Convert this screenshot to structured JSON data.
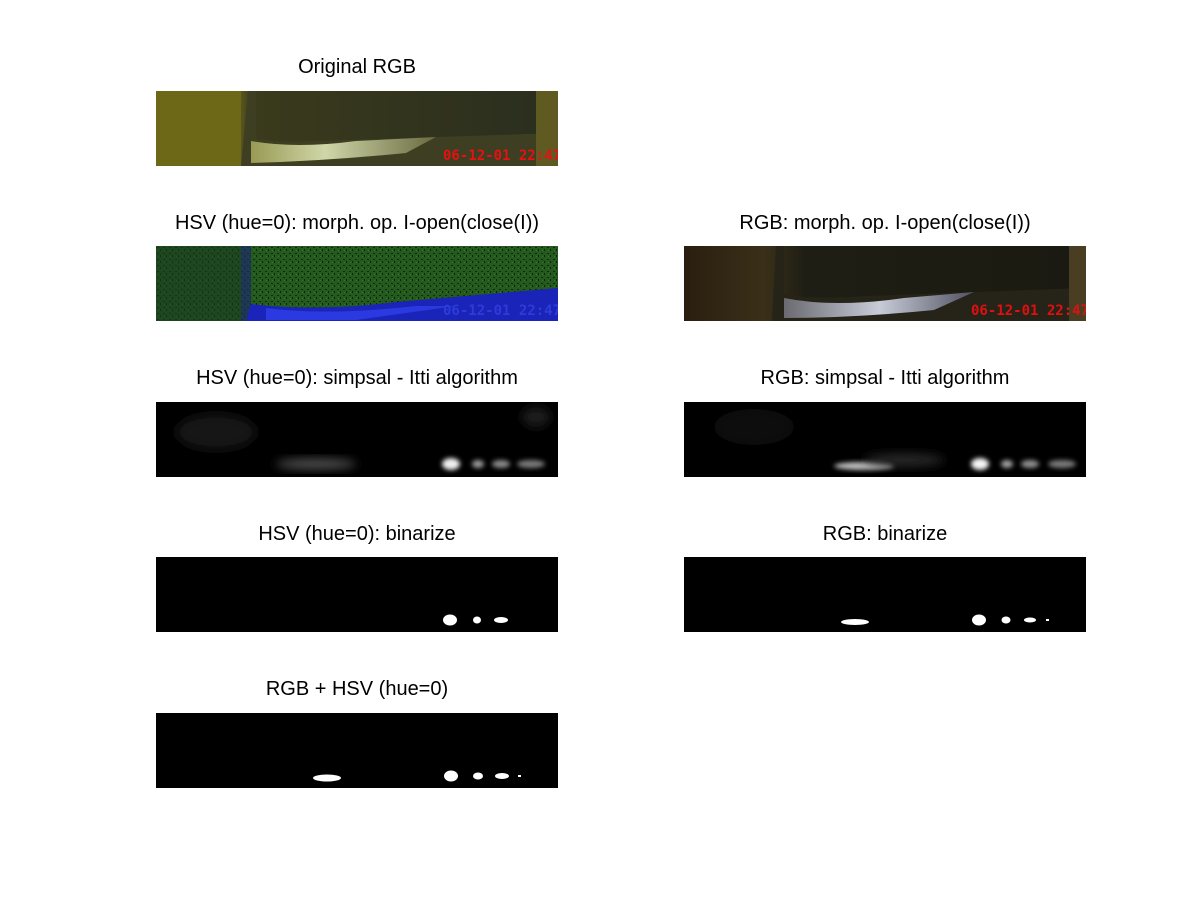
{
  "figure": {
    "panels": [
      {
        "id": "original",
        "title": "Original RGB",
        "overlay": "06-12-01 22:47"
      },
      {
        "id": "hsv-morph",
        "title": "HSV (hue=0): morph. op. I-open(close(I))",
        "overlay": "06-12-01 22:47"
      },
      {
        "id": "rgb-morph",
        "title": "RGB: morph. op. I-open(close(I))",
        "overlay": "06-12-01 22:47"
      },
      {
        "id": "hsv-saliency",
        "title": "HSV (hue=0): simpsal - Itti algorithm"
      },
      {
        "id": "rgb-saliency",
        "title": "RGB: simpsal - Itti algorithm"
      },
      {
        "id": "hsv-binarize",
        "title": "HSV (hue=0): binarize"
      },
      {
        "id": "rgb-binarize",
        "title": "RGB: binarize"
      },
      {
        "id": "combined",
        "title": "RGB + HSV (hue=0)"
      }
    ]
  }
}
